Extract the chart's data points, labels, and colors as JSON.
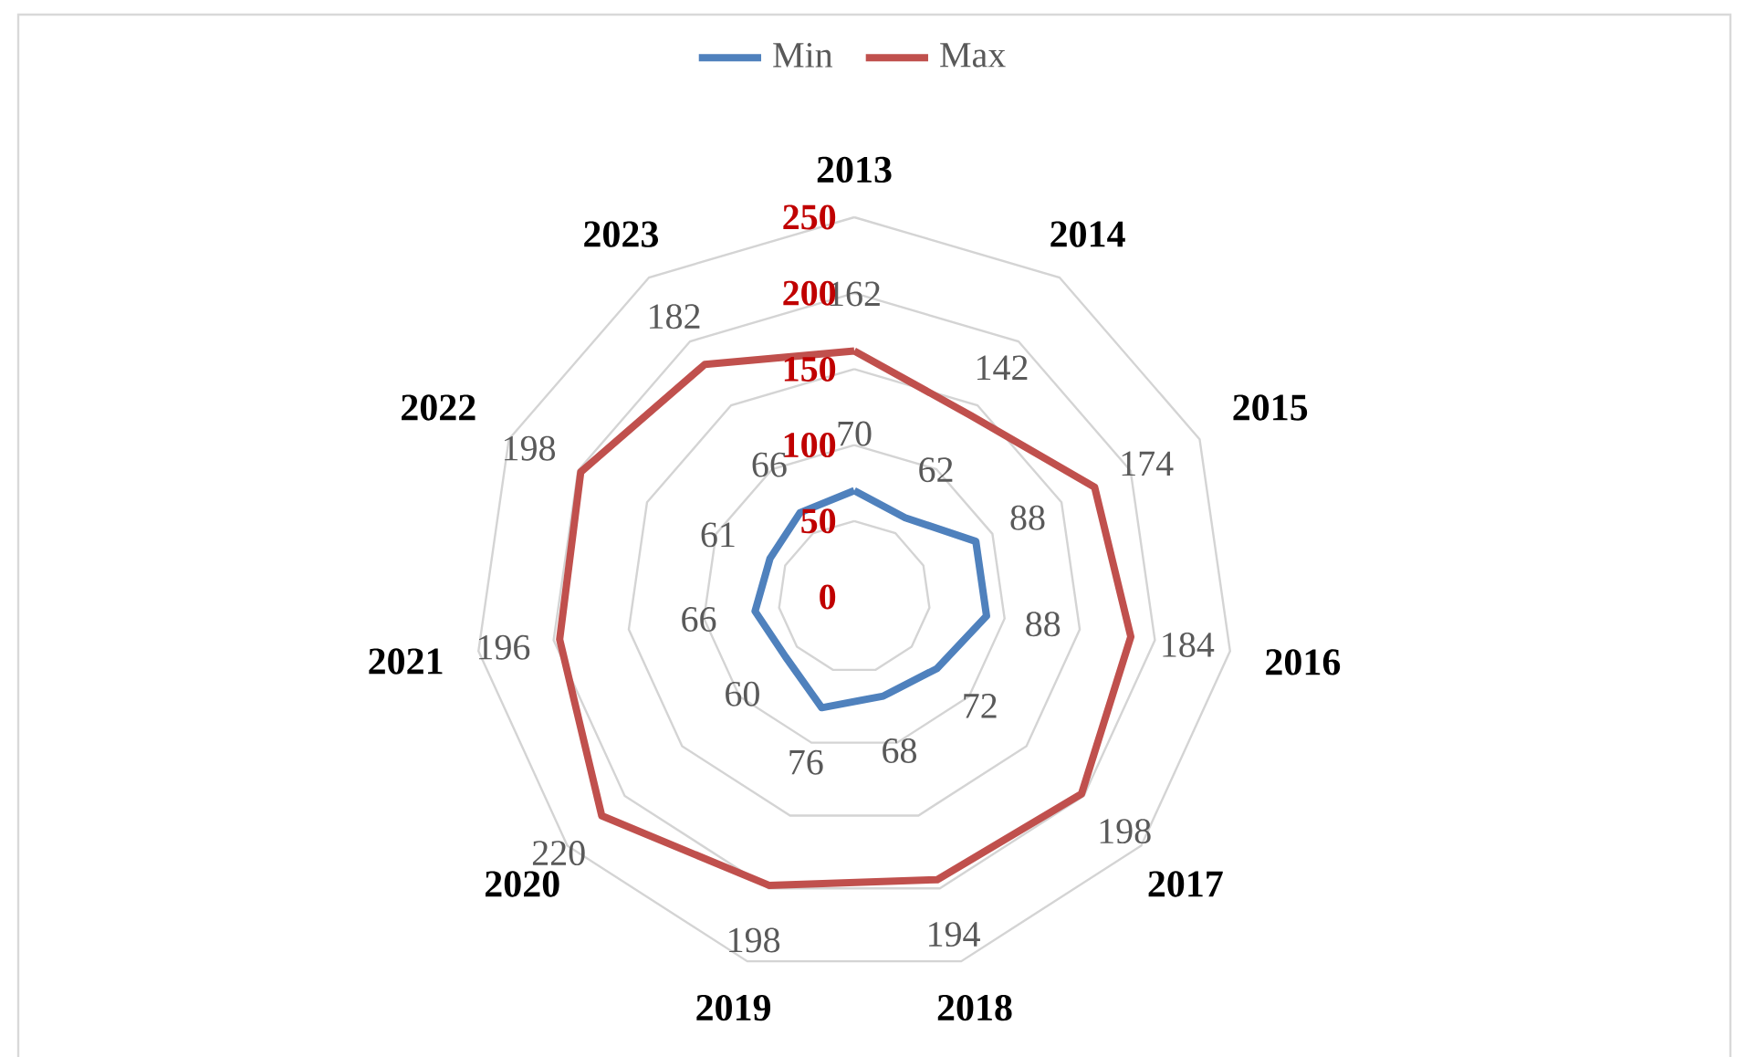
{
  "chart_data": {
    "type": "radar",
    "categories": [
      "2013",
      "2014",
      "2015",
      "2016",
      "2017",
      "2018",
      "2019",
      "2020",
      "2021",
      "2022",
      "2023"
    ],
    "series": [
      {
        "name": "Min",
        "color": "#4f81bd",
        "values": [
          70,
          62,
          88,
          88,
          72,
          68,
          76,
          60,
          66,
          61,
          66
        ]
      },
      {
        "name": "Max",
        "color": "#c0504d",
        "values": [
          162,
          142,
          174,
          184,
          198,
          194,
          198,
          220,
          196,
          198,
          182
        ]
      }
    ],
    "ylim": [
      0,
      250
    ],
    "yticks": [
      0,
      50,
      100,
      150,
      200,
      250
    ],
    "grid": true,
    "legend": "top",
    "data_labels": true
  }
}
